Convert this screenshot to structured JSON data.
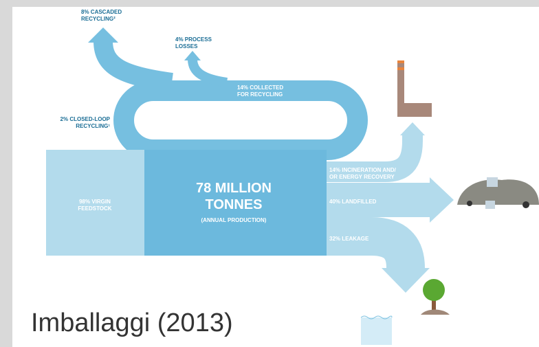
{
  "diagram": {
    "center": {
      "lines": [
        "78 MILLION",
        "TONNES"
      ],
      "note": "(ANNUAL PRODUCTION)"
    },
    "input": {
      "lines": [
        "98% VIRGIN",
        "FEEDSTOCK"
      ]
    },
    "flows": [
      {
        "lines": [
          "8% CASCADED",
          "RECYCLING²"
        ]
      },
      {
        "lines": [
          "4% PROCESS",
          "LOSSES"
        ]
      },
      {
        "lines": [
          "14% COLLECTED",
          "FOR RECYCLING"
        ]
      },
      {
        "lines": [
          "2% CLOSED-LOOP",
          "RECYCLING¹"
        ]
      },
      {
        "lines": [
          "14% INCINERATION AND/",
          "OR ENERGY RECOVERY"
        ]
      },
      {
        "lines": [
          "40% LANDFILLED"
        ]
      },
      {
        "lines": [
          "32% LEAKAGE"
        ]
      }
    ],
    "caption": "Imballaggi (2013)"
  }
}
